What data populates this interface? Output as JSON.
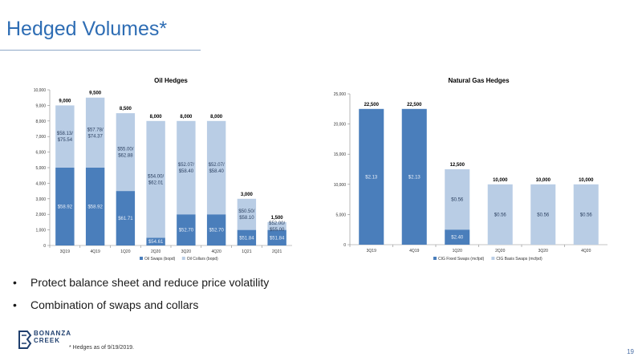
{
  "page": {
    "title": "Hedged Volumes*",
    "bullets": [
      "Protect balance sheet and reduce price volatility",
      "Combination of swaps and collars"
    ],
    "footnote": "* Hedges as of 9/19/2019.",
    "page_number": "19",
    "logo": {
      "line1": "BONANZA",
      "line2": "CREEK"
    }
  },
  "colors": {
    "dark_blue": "#4a7ebb",
    "light_blue": "#b9cde5",
    "title_blue": "#2e6db4"
  },
  "chart_data": [
    {
      "type": "bar",
      "stacked": true,
      "title": "Oil Hedges",
      "categories": [
        "3Q19",
        "4Q19",
        "1Q20",
        "2Q20",
        "3Q20",
        "4Q20",
        "1Q21",
        "2Q21"
      ],
      "ylim": [
        0,
        10000
      ],
      "yticks": [
        "0",
        "1,000",
        "2,000",
        "3,000",
        "4,000",
        "5,000",
        "6,000",
        "7,000",
        "8,000",
        "9,000",
        "10,000"
      ],
      "grid": false,
      "legend": "bottom",
      "totals": [
        "9,000",
        "9,500",
        "8,500",
        "8,000",
        "8,000",
        "8,000",
        "3,000",
        "1,500"
      ],
      "series": [
        {
          "name": "Oil Swaps (bopd)",
          "color": "#4a7ebb",
          "values": [
            5000,
            5000,
            3500,
            500,
            2000,
            2000,
            1000,
            1000
          ],
          "labels": [
            "$58.92",
            "$58.92",
            "$61.71",
            "$54.61",
            "$52.70",
            "$52.70",
            "$51.84",
            "$51.84"
          ]
        },
        {
          "name": "Oil Collars (bopd)",
          "color": "#b9cde5",
          "values": [
            4000,
            4500,
            5000,
            7500,
            6000,
            6000,
            2000,
            500
          ],
          "labels": [
            "$58.13/\n$75.54",
            "$57.78/\n$74.37",
            "$55.00/\n$62.88",
            "$54.00/\n$62.01",
            "$52.07/\n$58.40",
            "$52.07/\n$58.40",
            "$50.50/\n$58.10",
            "$52.00/\n$55.00"
          ]
        }
      ]
    },
    {
      "type": "bar",
      "stacked": true,
      "title": "Natural Gas Hedges",
      "categories": [
        "3Q19",
        "4Q19",
        "1Q20",
        "2Q20",
        "3Q20",
        "4Q20"
      ],
      "ylim": [
        0,
        25000
      ],
      "yticks": [
        "0",
        "5,000",
        "10,000",
        "15,000",
        "20,000",
        "25,000"
      ],
      "grid": false,
      "legend": "bottom",
      "totals": [
        "22,500",
        "22,500",
        "12,500",
        "10,000",
        "10,000",
        "10,000"
      ],
      "series": [
        {
          "name": "CIG Fixed Swaps (mcfpd)",
          "color": "#4a7ebb",
          "values": [
            22500,
            22500,
            2500,
            0,
            0,
            0
          ],
          "labels": [
            "$2.13",
            "$2.13",
            "$2.40",
            "",
            "",
            ""
          ]
        },
        {
          "name": "CIG Basis Swaps (mcfpd)",
          "color": "#b9cde5",
          "values": [
            0,
            0,
            10000,
            10000,
            10000,
            10000
          ],
          "labels": [
            "",
            "",
            "$0.56",
            "$0.56",
            "$0.56",
            "$0.56"
          ]
        }
      ]
    }
  ]
}
